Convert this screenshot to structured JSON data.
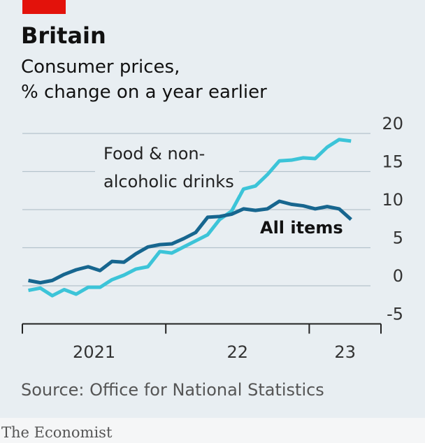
{
  "chart_data": {
    "type": "line",
    "title": "Britain",
    "subtitle": [
      "Consumer prices,",
      "% change on a year earlier"
    ],
    "source": "Source: Office for National Statistics",
    "brand": "The Economist",
    "x": [
      0.5,
      1.5,
      2.5,
      3.5,
      4.5,
      5.5,
      6.5,
      7.5,
      8.5,
      9.5,
      10.5,
      11.5,
      12.5,
      13.5,
      14.5,
      15.5,
      16.5,
      17.5,
      18.5,
      19.5,
      20.5,
      21.5,
      22.5,
      23.5,
      24.5,
      25.5,
      26.5,
      27.5
    ],
    "xlim": [
      0,
      30
    ],
    "xticks": [
      0,
      12,
      24,
      30
    ],
    "xlabels": [
      {
        "value": 6,
        "label": "2021"
      },
      {
        "value": 18,
        "label": "22"
      },
      {
        "value": 27,
        "label": "23"
      }
    ],
    "ylim": [
      -5,
      20
    ],
    "yticks": [
      -5,
      0,
      5,
      10,
      15,
      20
    ],
    "grid": true,
    "series": [
      {
        "name_lines": [
          "Food & non-",
          "alcoholic drinks"
        ],
        "color": "#3cc4d8",
        "values": [
          -0.6,
          -0.3,
          -1.3,
          -0.5,
          -1.1,
          -0.2,
          -0.2,
          0.8,
          1.4,
          2.2,
          2.5,
          4.5,
          4.3,
          5.1,
          5.9,
          6.7,
          8.7,
          9.8,
          12.7,
          13.1,
          14.6,
          16.4,
          16.5,
          16.8,
          16.7,
          18.2,
          19.2,
          19.0
        ]
      },
      {
        "name": "All items",
        "color": "#17668f",
        "values": [
          0.7,
          0.4,
          0.7,
          1.5,
          2.1,
          2.5,
          2.0,
          3.2,
          3.1,
          4.2,
          5.1,
          5.4,
          5.5,
          6.2,
          7.0,
          9.0,
          9.1,
          9.4,
          10.1,
          9.9,
          10.1,
          11.1,
          10.7,
          10.5,
          10.1,
          10.4,
          10.1,
          8.7
        ]
      }
    ]
  }
}
